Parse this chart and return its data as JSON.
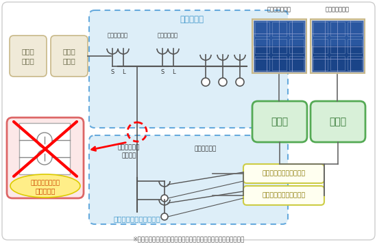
{
  "bg_color": "#ffffff",
  "title_note": "※ＫＥシリーズの場合入力側が太陽光発電用ブレーカとなります。",
  "outdoor_panel_title": "屋外分電盤",
  "outdoor_panel_color": "#ddeef8",
  "outdoor_panel_border": "#66aadd",
  "ke_box_title": "交流集電箱ＫＥシリーズ",
  "ke_box_color": "#ddeef8",
  "ke_box_border": "#66aadd",
  "meter_box_color": "#f0ead8",
  "meter_box_border": "#c8b888",
  "meter1_label": "買電用\n電力計",
  "meter2_label": "売電用\n電力計",
  "no_breaker_box_color": "#fce8e8",
  "no_breaker_box_border": "#dd6666",
  "no_breaker_label1": "外付けブレーカー",
  "no_breaker_label2": "取付不要！",
  "no_breaker_bubble_color": "#ffee88",
  "solar_panel_label": "太陽電池パネル",
  "junction_box_label": "接続箱",
  "junction_box_color": "#d8f0d8",
  "junction_box_border": "#55aa55",
  "power_conditioner_label": "パワーコンディショナー",
  "power_conditioner_color": "#fffff0",
  "power_conditioner_border": "#cccc44",
  "yakubu_label": "契約ブレーカ",
  "roden_label": "漏電ブレーカ",
  "solar_breaker_label": "太陽光発電用\nブレーカ",
  "haiden_label": "配電ブレーカ",
  "line_color": "#555555",
  "text_color": "#333333",
  "blue_text": "#4499cc"
}
